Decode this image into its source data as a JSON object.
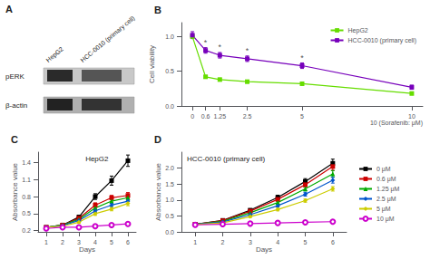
{
  "chart_data": [
    {
      "type": "blot",
      "annotations": [
        {
          "text": "A"
        }
      ],
      "categories": [
        "HepG2",
        "HCC-0010 (primary cell)"
      ],
      "rows": [
        "pERK",
        "β-actin"
      ]
    },
    {
      "type": "line",
      "annotations": [
        {
          "text": "B"
        },
        {
          "text": "*",
          "x": 0.6
        },
        {
          "text": "*",
          "x": 1.25
        },
        {
          "text": "*",
          "x": 2.5
        },
        {
          "text": "*",
          "x": 5
        }
      ],
      "x": [
        0,
        0.6,
        1.25,
        2.5,
        5,
        10
      ],
      "series": [
        {
          "name": "HepG2",
          "color": "#66dd00",
          "marker": "square",
          "values": [
            1.0,
            0.42,
            0.38,
            0.35,
            0.32,
            0.18
          ],
          "errors": [
            0.02,
            0.02,
            0.02,
            0.02,
            0.02,
            0.02
          ]
        },
        {
          "name": "HCC-0010 (primary cell)",
          "color": "#7700bb",
          "marker": "square",
          "values": [
            1.02,
            0.8,
            0.73,
            0.68,
            0.58,
            0.27
          ],
          "errors": [
            0.05,
            0.04,
            0.04,
            0.04,
            0.04,
            0.03
          ]
        }
      ],
      "xlabel": "10 (Sorafenib: μM)",
      "ylabel": "Cell viability",
      "xlim": [
        -0.5,
        10.5
      ],
      "xticks": [
        0,
        0.6,
        1.25,
        2.5,
        5,
        10
      ],
      "ylim": [
        0.0,
        1.2
      ],
      "yticks": [
        {
          "value": 0.0,
          "label": "0.0"
        },
        {
          "value": 0.5,
          "label": "0.5"
        },
        {
          "value": 1.0,
          "label": "1.0"
        }
      ],
      "grid": false,
      "legend": "upper right"
    },
    {
      "type": "line",
      "title": "HepG2",
      "annotations": [
        {
          "text": "C"
        }
      ],
      "x": [
        1,
        2,
        3,
        4,
        5,
        6
      ],
      "series": [
        {
          "color": "#000000",
          "marker": "square",
          "values": [
            0.26,
            0.3,
            0.44,
            0.8,
            1.08,
            1.43
          ],
          "errors": [
            0.01,
            0.02,
            0.03,
            0.05,
            0.08,
            0.1
          ]
        },
        {
          "color": "#cc0000",
          "marker": "square",
          "values": [
            0.26,
            0.3,
            0.42,
            0.65,
            0.78,
            0.82
          ],
          "errors": [
            0.01,
            0.02,
            0.02,
            0.04,
            0.04,
            0.05
          ]
        },
        {
          "color": "#00aa00",
          "marker": "triangle",
          "values": [
            0.26,
            0.3,
            0.4,
            0.6,
            0.72,
            0.78
          ],
          "errors": [
            0.01,
            0.02,
            0.02,
            0.03,
            0.04,
            0.04
          ]
        },
        {
          "color": "#0055cc",
          "marker": "diamond",
          "values": [
            0.26,
            0.29,
            0.38,
            0.55,
            0.65,
            0.72
          ],
          "errors": [
            0.01,
            0.01,
            0.02,
            0.03,
            0.03,
            0.04
          ]
        },
        {
          "color": "#cccc00",
          "marker": "diamond",
          "values": [
            0.26,
            0.28,
            0.35,
            0.5,
            0.58,
            0.68
          ],
          "errors": [
            0.01,
            0.01,
            0.02,
            0.03,
            0.03,
            0.04
          ]
        },
        {
          "color": "#cc00cc",
          "marker": "emptyCircle",
          "values": [
            0.24,
            0.26,
            0.26,
            0.28,
            0.3,
            0.32
          ],
          "errors": [
            0.01,
            0.01,
            0.01,
            0.01,
            0.02,
            0.02
          ]
        }
      ],
      "xlabel": "Days",
      "ylabel": "Absorbance value",
      "xlim": [
        0.5,
        6.5
      ],
      "xticks": [
        1,
        2,
        3,
        4,
        5,
        6
      ],
      "ylim": [
        0.18,
        1.58
      ],
      "yticks": [
        0.2,
        0.5,
        0.8,
        1.1,
        1.4
      ],
      "grid": false
    },
    {
      "type": "line",
      "title": "HCC-0010 (primary cell)",
      "annotations": [
        {
          "text": "D"
        }
      ],
      "x": [
        1,
        2,
        3,
        4,
        5,
        6
      ],
      "series": [
        {
          "name": "0 μM",
          "color": "#000000",
          "marker": "square",
          "values": [
            0.24,
            0.36,
            0.68,
            1.08,
            1.58,
            2.15
          ],
          "errors": [
            0.01,
            0.02,
            0.04,
            0.07,
            0.09,
            0.13
          ]
        },
        {
          "name": "0.6 μM",
          "color": "#cc0000",
          "marker": "square",
          "values": [
            0.24,
            0.35,
            0.65,
            1.02,
            1.48,
            2.05
          ],
          "errors": [
            0.01,
            0.02,
            0.04,
            0.06,
            0.08,
            0.12
          ]
        },
        {
          "name": "1.25 μM",
          "color": "#00aa00",
          "marker": "triangle",
          "values": [
            0.24,
            0.33,
            0.6,
            0.92,
            1.35,
            1.82
          ],
          "errors": [
            0.01,
            0.02,
            0.03,
            0.05,
            0.07,
            0.1
          ]
        },
        {
          "name": "2.5 μM",
          "color": "#0055cc",
          "marker": "diamond",
          "values": [
            0.24,
            0.31,
            0.54,
            0.82,
            1.18,
            1.62
          ],
          "errors": [
            0.01,
            0.02,
            0.03,
            0.04,
            0.06,
            0.09
          ]
        },
        {
          "name": "5 μM",
          "color": "#cccc00",
          "marker": "diamond",
          "values": [
            0.23,
            0.28,
            0.48,
            0.7,
            0.98,
            1.35
          ],
          "errors": [
            0.01,
            0.01,
            0.03,
            0.04,
            0.05,
            0.07
          ]
        },
        {
          "name": "10 μM",
          "color": "#cc00cc",
          "marker": "emptyCircle",
          "values": [
            0.22,
            0.24,
            0.26,
            0.28,
            0.3,
            0.32
          ],
          "errors": [
            0.01,
            0.01,
            0.01,
            0.01,
            0.02,
            0.02
          ]
        }
      ],
      "xlabel": "Days",
      "ylabel": "Absorbance value",
      "xlim": [
        0.5,
        6.5
      ],
      "xticks": [
        1,
        2,
        3,
        4,
        5,
        6
      ],
      "ylim": [
        0.0,
        2.5
      ],
      "yticks": [
        {
          "value": 0.0,
          "label": "0.0"
        },
        {
          "value": 0.5,
          "label": "0.5"
        },
        {
          "value": 1.0,
          "label": "1.0"
        },
        {
          "value": 1.5,
          "label": "1.5"
        },
        {
          "value": 2.0,
          "label": "2.0"
        }
      ],
      "grid": false,
      "legend": "right"
    }
  ]
}
